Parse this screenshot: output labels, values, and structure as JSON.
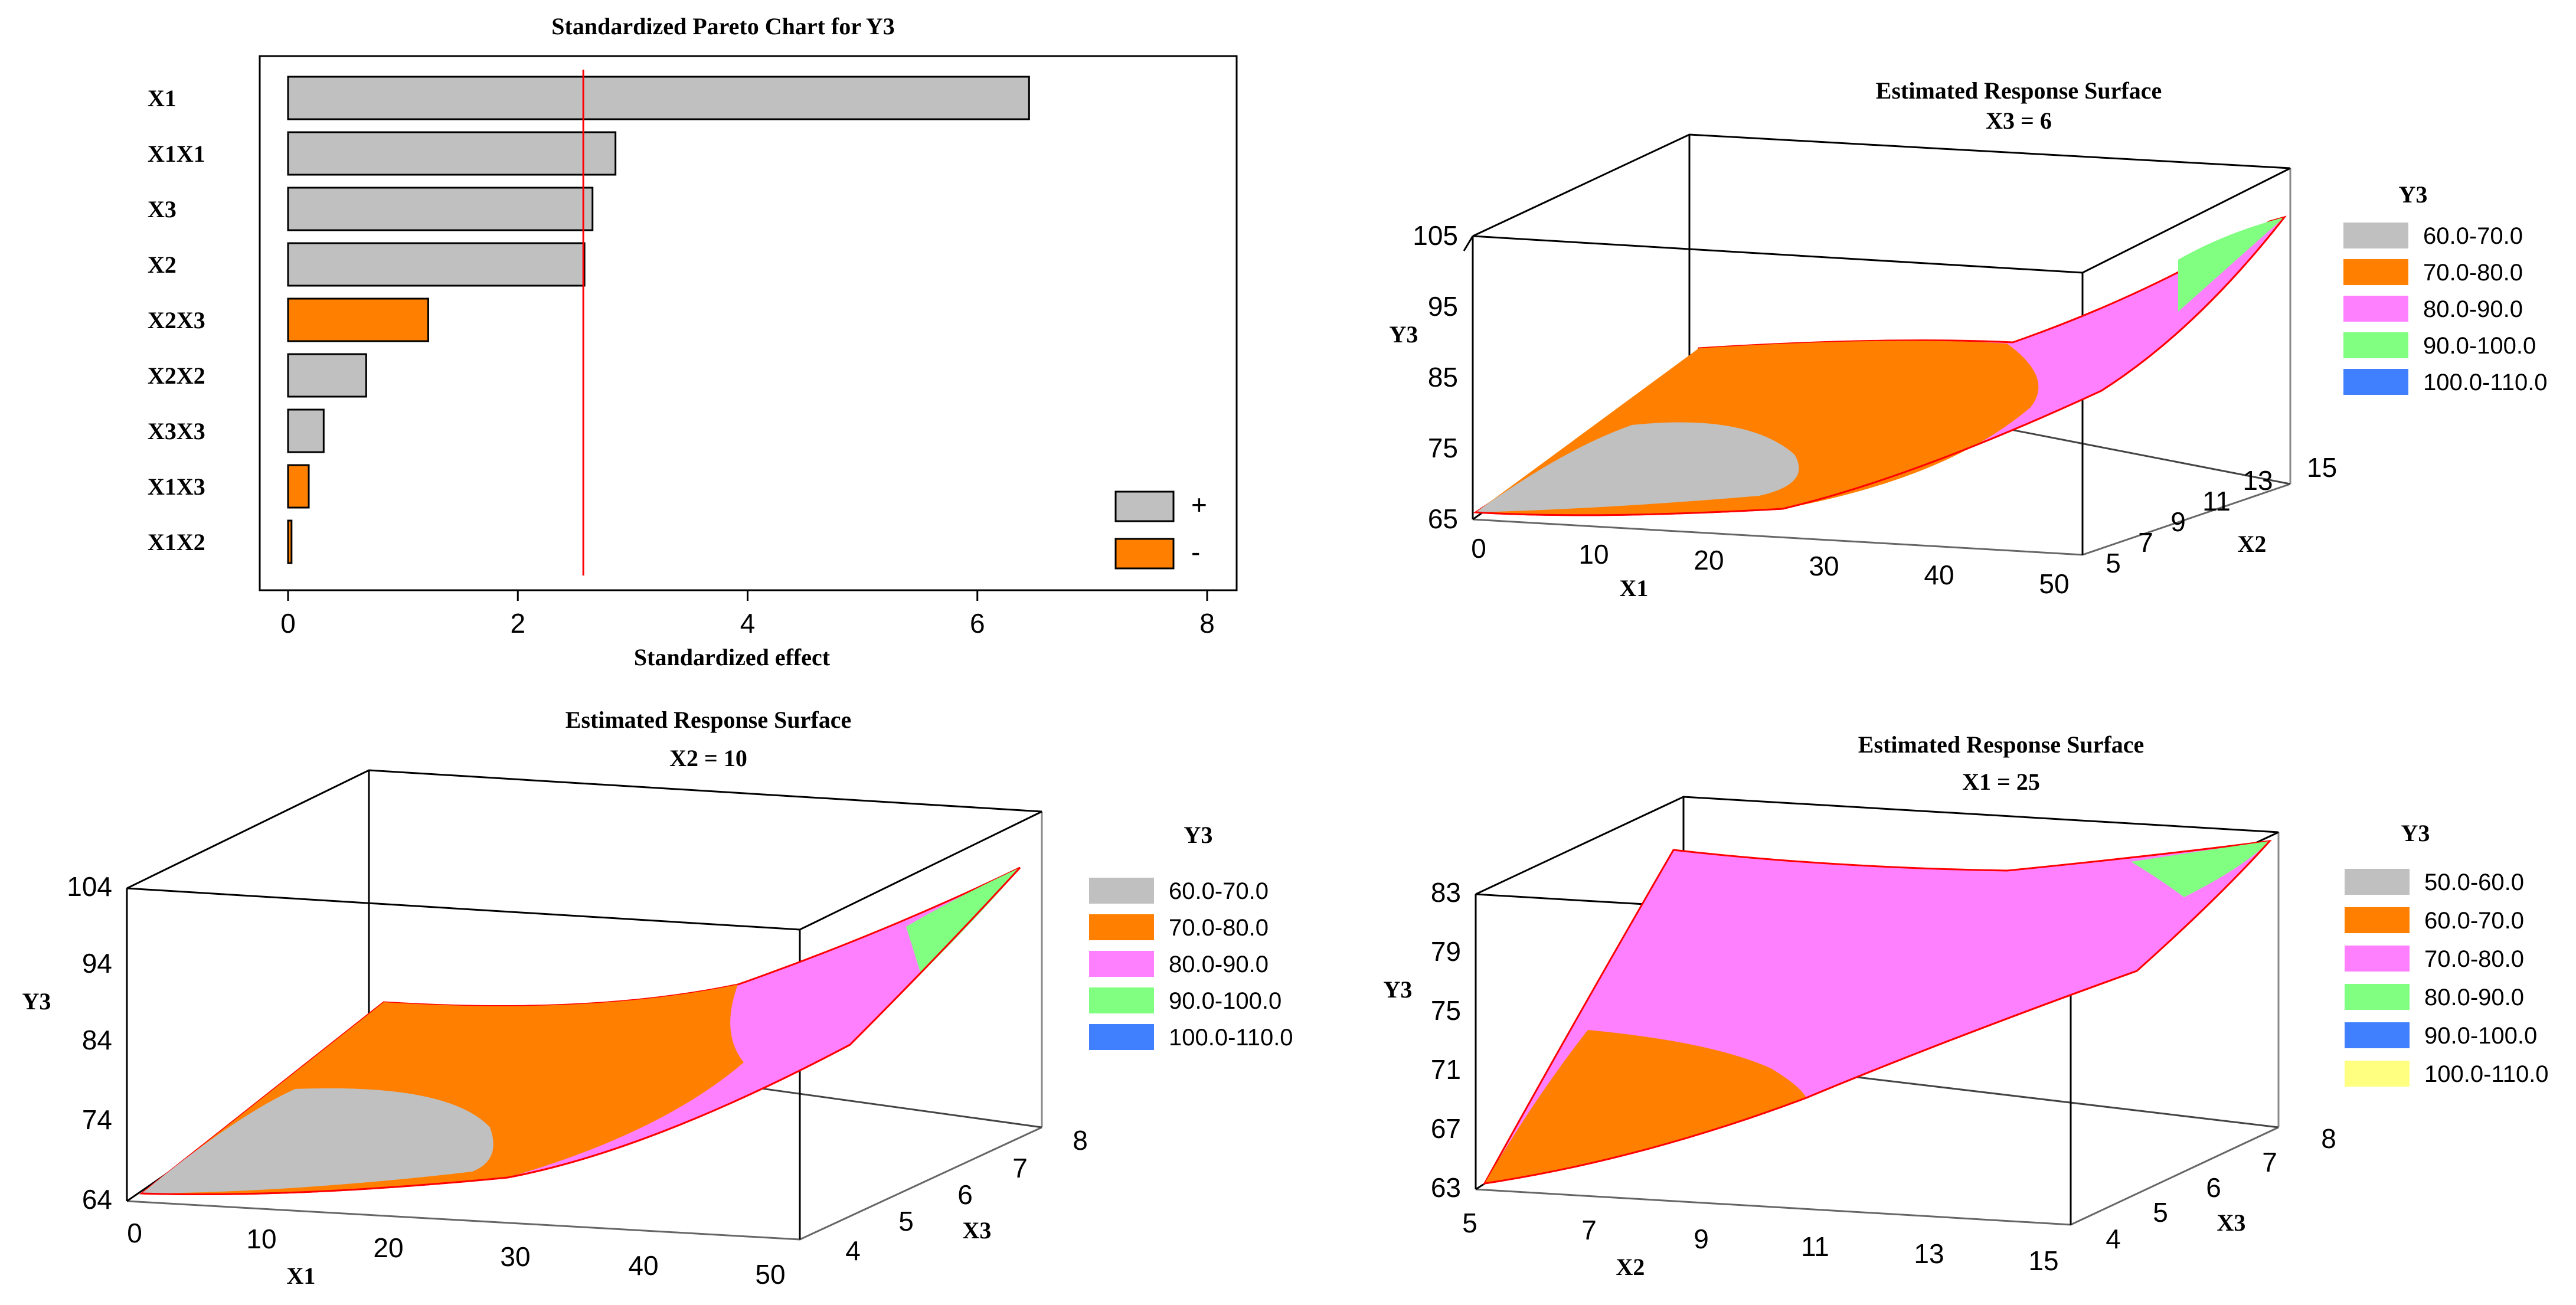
{
  "chart_data": [
    {
      "type": "bar",
      "orientation": "horizontal",
      "title": "Standardized Pareto Chart for Y3",
      "xlabel": "Standardized effect",
      "ylabel": "",
      "xlim": [
        0,
        8
      ],
      "xticks": [
        "0",
        "2",
        "4",
        "6",
        "8"
      ],
      "categories": [
        "X1",
        "X1X1",
        "X3",
        "X2",
        "X2X3",
        "X2X2",
        "X3X3",
        "X1X3",
        "X1X2"
      ],
      "values": [
        6.45,
        2.85,
        2.65,
        2.58,
        1.22,
        0.68,
        0.31,
        0.18,
        0.03
      ],
      "signs": [
        "+",
        "+",
        "+",
        "+",
        "-",
        "+",
        "+",
        "-",
        "-"
      ],
      "reference_line": 2.57,
      "legend": [
        {
          "label": "+",
          "color": "#c0c0c0"
        },
        {
          "label": "-",
          "color": "#ff8000"
        }
      ]
    },
    {
      "type": "surface",
      "title": "Estimated Response Surface",
      "subtitle": "X3 = 6",
      "xlabel": "X1",
      "ylabel": "X2",
      "zlabel": "Y3",
      "x_ticks": [
        "0",
        "10",
        "20",
        "30",
        "40",
        "50"
      ],
      "y_ticks": [
        "5",
        "7",
        "9",
        "11",
        "13",
        "15"
      ],
      "z_ticks": [
        "65",
        "75",
        "85",
        "95",
        "105"
      ],
      "legend_title": "Y3",
      "legend": [
        {
          "label": "60.0-70.0",
          "color": "#c0c0c0"
        },
        {
          "label": "70.0-80.0",
          "color": "#ff8000"
        },
        {
          "label": "80.0-90.0",
          "color": "#ff80ff"
        },
        {
          "label": "90.0-100.0",
          "color": "#80ff80"
        },
        {
          "label": "100.0-110.0",
          "color": "#4080ff"
        }
      ]
    },
    {
      "type": "surface",
      "title": "Estimated Response Surface",
      "subtitle": "X2 = 10",
      "xlabel": "X1",
      "ylabel": "X3",
      "zlabel": "Y3",
      "x_ticks": [
        "0",
        "10",
        "20",
        "30",
        "40",
        "50"
      ],
      "y_ticks": [
        "4",
        "5",
        "6",
        "7",
        "8"
      ],
      "z_ticks": [
        "64",
        "74",
        "84",
        "94",
        "104"
      ],
      "legend_title": "Y3",
      "legend": [
        {
          "label": "60.0-70.0",
          "color": "#c0c0c0"
        },
        {
          "label": "70.0-80.0",
          "color": "#ff8000"
        },
        {
          "label": "80.0-90.0",
          "color": "#ff80ff"
        },
        {
          "label": "90.0-100.0",
          "color": "#80ff80"
        },
        {
          "label": "100.0-110.0",
          "color": "#4080ff"
        }
      ]
    },
    {
      "type": "surface",
      "title": "Estimated Response Surface",
      "subtitle": "X1 = 25",
      "xlabel": "X2",
      "ylabel": "X3",
      "zlabel": "Y3",
      "x_ticks": [
        "5",
        "7",
        "9",
        "11",
        "13",
        "15"
      ],
      "y_ticks": [
        "4",
        "5",
        "6",
        "7",
        "8"
      ],
      "z_ticks": [
        "63",
        "67",
        "71",
        "75",
        "79",
        "83"
      ],
      "legend_title": "Y3",
      "legend": [
        {
          "label": "50.0-60.0",
          "color": "#c0c0c0"
        },
        {
          "label": "60.0-70.0",
          "color": "#ff8000"
        },
        {
          "label": "70.0-80.0",
          "color": "#ff80ff"
        },
        {
          "label": "80.0-90.0",
          "color": "#80ff80"
        },
        {
          "label": "90.0-100.0",
          "color": "#4080ff"
        },
        {
          "label": "100.0-110.0",
          "color": "#ffff80"
        }
      ]
    }
  ]
}
